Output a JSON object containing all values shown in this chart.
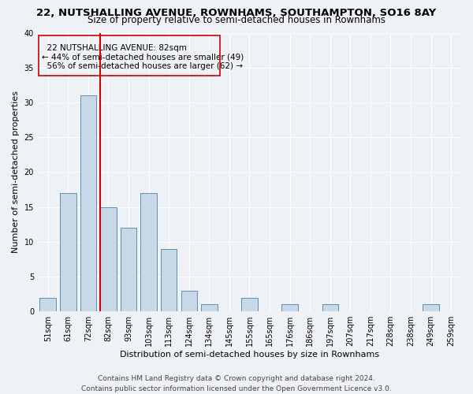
{
  "title_line1": "22, NUTSHALLING AVENUE, ROWNHAMS, SOUTHAMPTON, SO16 8AY",
  "title_line2": "Size of property relative to semi-detached houses in Rownhams",
  "xlabel": "Distribution of semi-detached houses by size in Rownhams",
  "ylabel": "Number of semi-detached properties",
  "footer_line1": "Contains HM Land Registry data © Crown copyright and database right 2024.",
  "footer_line2": "Contains public sector information licensed under the Open Government Licence v3.0.",
  "categories": [
    "51sqm",
    "61sqm",
    "72sqm",
    "82sqm",
    "93sqm",
    "103sqm",
    "113sqm",
    "124sqm",
    "134sqm",
    "145sqm",
    "155sqm",
    "165sqm",
    "176sqm",
    "186sqm",
    "197sqm",
    "207sqm",
    "217sqm",
    "228sqm",
    "238sqm",
    "249sqm",
    "259sqm"
  ],
  "values": [
    2,
    17,
    31,
    15,
    12,
    17,
    9,
    3,
    1,
    0,
    2,
    0,
    1,
    0,
    1,
    0,
    0,
    0,
    0,
    1,
    0
  ],
  "bar_color": "#c8d8e8",
  "bar_edge_color": "#6090b0",
  "highlight_line_index": 3,
  "highlight_label": "22 NUTSHALLING AVENUE: 82sqm",
  "smaller_pct": "44%",
  "smaller_n": 49,
  "larger_pct": "56%",
  "larger_n": 62,
  "ylim": [
    0,
    40
  ],
  "yticks": [
    0,
    5,
    10,
    15,
    20,
    25,
    30,
    35,
    40
  ],
  "background_color": "#eef2f7",
  "grid_color": "#ffffff",
  "box_color": "#cc0000",
  "title_fontsize": 9.5,
  "subtitle_fontsize": 8.5,
  "axis_label_fontsize": 8,
  "tick_fontsize": 7,
  "annotation_fontsize": 7.5,
  "footer_fontsize": 6.5
}
